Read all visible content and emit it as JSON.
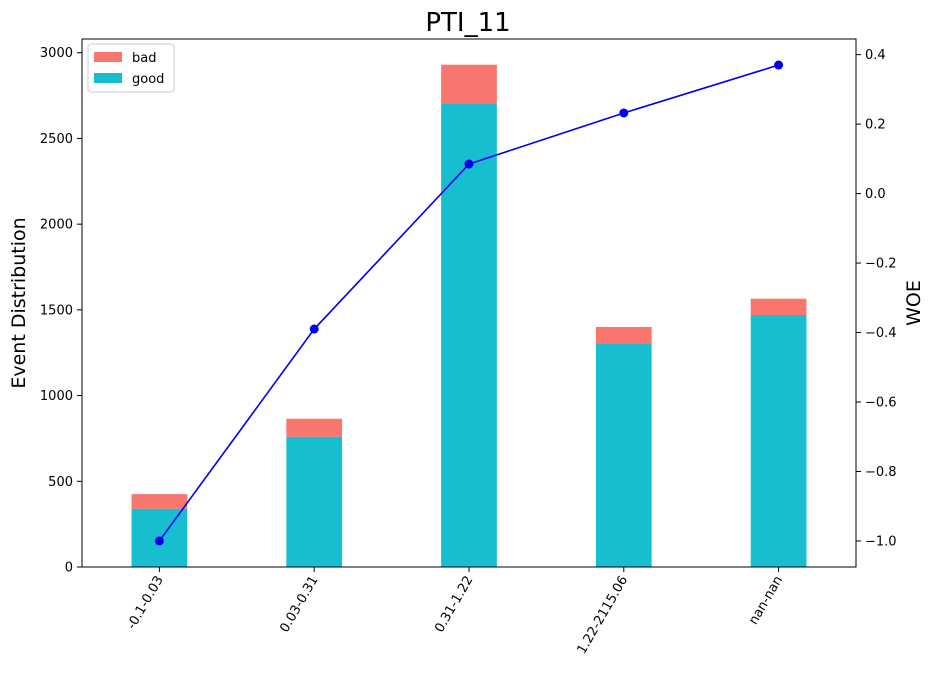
{
  "chart_data": {
    "type": "bar",
    "title": "PTI_11",
    "categories": [
      "-0.1-0.03",
      "0.03-0.31",
      "0.31-1.22",
      "1.22-2115.06",
      "nan-nan"
    ],
    "series": [
      {
        "name": "good",
        "values": [
          340,
          760,
          2705,
          1305,
          1470
        ],
        "color": "#17becf",
        "stack": true
      },
      {
        "name": "bad",
        "values": [
          85,
          105,
          225,
          95,
          95
        ],
        "color": "#f8766d",
        "stack": true
      }
    ],
    "line_series": {
      "values": [
        -1.0,
        -0.39,
        0.085,
        0.232,
        0.37
      ],
      "color": "#0000ee",
      "axis": "right"
    },
    "ylabel": "Event Distribution",
    "ylabel_right": "WOE",
    "ylim": [
      0,
      3080
    ],
    "ylim_right": [
      -1.075,
      0.445
    ],
    "yticks": [
      0,
      500,
      1000,
      1500,
      2000,
      2500,
      3000
    ],
    "yticks_right": [
      -1.0,
      -0.8,
      -0.6,
      -0.4,
      -0.2,
      0.0,
      0.2,
      0.4
    ],
    "yticks_right_labels": [
      "−1.0",
      "−0.8",
      "−0.6",
      "−0.4",
      "−0.2",
      "0.0",
      "0.2",
      "0.4"
    ],
    "legend": {
      "placement": "top-left",
      "entries": [
        "bad",
        "good"
      ]
    },
    "grid": false
  }
}
